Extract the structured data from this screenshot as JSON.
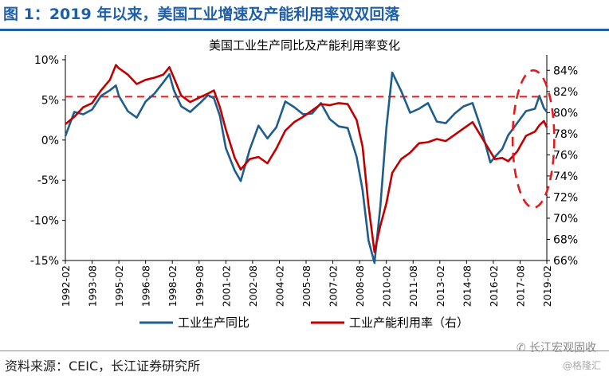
{
  "figure_title": "图 1：2019 年以来，美国工业增速及产能利用率双双回落",
  "source": "资料来源：CEIC，长江证券研究所",
  "watermark": "长江宏观固收",
  "watermark_sub": "@格隆汇",
  "colors": {
    "title": "#1f5fa8",
    "series_ip": "#1e5d8c",
    "series_cap": "#c00000",
    "reference": "#e31a1c"
  },
  "chart_data": {
    "type": "line",
    "title": "美国工业生产同比及产能利用率变化",
    "legend_position": "bottom",
    "grid": false,
    "x_range": [
      "1992-02",
      "2019-02"
    ],
    "x_tick_labels": [
      "1992-02",
      "1993-08",
      "1995-02",
      "1996-08",
      "1998-02",
      "1999-08",
      "2001-02",
      "2002-08",
      "2004-02",
      "2005-08",
      "2007-02",
      "2008-08",
      "2010-02",
      "2011-08",
      "2013-02",
      "2014-08",
      "2016-02",
      "2017-08",
      "2019-02"
    ],
    "left_axis": {
      "ylim": [
        -15,
        10
      ],
      "ticks": [
        "10%",
        "5%",
        "0%",
        "-5%",
        "-10%",
        "-15%"
      ],
      "tick_values": [
        10,
        5,
        0,
        -5,
        -10,
        -15
      ]
    },
    "right_axis": {
      "ylim": [
        66,
        85
      ],
      "ticks": [
        "84%",
        "82%",
        "80%",
        "78%",
        "76%",
        "74%",
        "72%",
        "70%",
        "68%",
        "66%"
      ],
      "tick_values": [
        84,
        82,
        80,
        78,
        76,
        74,
        72,
        70,
        68,
        66
      ]
    },
    "reference_line": {
      "axis": "right",
      "value": 81.5
    },
    "annotation": {
      "type": "dashed-ellipse",
      "x_start": "2017-03",
      "x_end": "2019-07",
      "y_right": [
        71,
        84
      ]
    },
    "series": [
      {
        "name": "工业生产同比",
        "axis": "left",
        "data": [
          [
            "1992-02",
            0.5
          ],
          [
            "1992-08",
            3.5
          ],
          [
            "1993-02",
            3.2
          ],
          [
            "1993-08",
            3.8
          ],
          [
            "1994-02",
            5.5
          ],
          [
            "1994-08",
            6.2
          ],
          [
            "1994-12",
            6.8
          ],
          [
            "1995-02",
            5.5
          ],
          [
            "1995-08",
            3.6
          ],
          [
            "1996-02",
            2.8
          ],
          [
            "1996-08",
            4.8
          ],
          [
            "1997-02",
            5.8
          ],
          [
            "1997-08",
            7.2
          ],
          [
            "1997-12",
            8.2
          ],
          [
            "1998-03",
            6.2
          ],
          [
            "1998-08",
            4.2
          ],
          [
            "1999-02",
            3.5
          ],
          [
            "1999-08",
            4.5
          ],
          [
            "2000-02",
            5.6
          ],
          [
            "2000-06",
            5.2
          ],
          [
            "2000-10",
            3.0
          ],
          [
            "2001-02",
            -1.0
          ],
          [
            "2001-08",
            -3.8
          ],
          [
            "2001-12",
            -5.1
          ],
          [
            "2002-06",
            -1.2
          ],
          [
            "2002-12",
            1.8
          ],
          [
            "2003-06",
            0.2
          ],
          [
            "2003-12",
            1.6
          ],
          [
            "2004-06",
            4.8
          ],
          [
            "2004-12",
            4.1
          ],
          [
            "2005-06",
            3.2
          ],
          [
            "2005-12",
            3.3
          ],
          [
            "2006-06",
            4.6
          ],
          [
            "2006-12",
            2.6
          ],
          [
            "2007-06",
            1.7
          ],
          [
            "2007-12",
            1.5
          ],
          [
            "2008-06",
            -2.1
          ],
          [
            "2008-10",
            -6.2
          ],
          [
            "2009-02",
            -12.5
          ],
          [
            "2009-06",
            -15.3
          ],
          [
            "2009-10",
            -8.2
          ],
          [
            "2010-02",
            1.5
          ],
          [
            "2010-06",
            8.4
          ],
          [
            "2010-12",
            6.1
          ],
          [
            "2011-06",
            3.4
          ],
          [
            "2011-12",
            3.9
          ],
          [
            "2012-06",
            4.6
          ],
          [
            "2012-12",
            2.3
          ],
          [
            "2013-06",
            2.1
          ],
          [
            "2013-12",
            3.3
          ],
          [
            "2014-06",
            4.2
          ],
          [
            "2014-12",
            4.6
          ],
          [
            "2015-06",
            1.3
          ],
          [
            "2015-12",
            -2.8
          ],
          [
            "2016-03",
            -2.1
          ],
          [
            "2016-08",
            -1.1
          ],
          [
            "2016-12",
            0.6
          ],
          [
            "2017-06",
            2.1
          ],
          [
            "2017-12",
            3.6
          ],
          [
            "2018-06",
            3.9
          ],
          [
            "2018-09",
            5.5
          ],
          [
            "2018-12",
            4.0
          ],
          [
            "2019-02",
            3.5
          ]
        ]
      },
      {
        "name": "工业产能利用率（右）",
        "axis": "right",
        "data": [
          [
            "1992-02",
            78.9
          ],
          [
            "1992-08",
            79.6
          ],
          [
            "1993-02",
            80.5
          ],
          [
            "1993-08",
            80.9
          ],
          [
            "1994-02",
            82.1
          ],
          [
            "1994-08",
            83.1
          ],
          [
            "1994-12",
            84.5
          ],
          [
            "1995-02",
            84.2
          ],
          [
            "1995-08",
            83.6
          ],
          [
            "1996-02",
            82.7
          ],
          [
            "1996-08",
            83.1
          ],
          [
            "1997-02",
            83.3
          ],
          [
            "1997-08",
            83.6
          ],
          [
            "1997-12",
            84.3
          ],
          [
            "1998-03",
            83.3
          ],
          [
            "1998-08",
            81.6
          ],
          [
            "1999-02",
            81.0
          ],
          [
            "1999-08",
            81.4
          ],
          [
            "2000-02",
            81.8
          ],
          [
            "2000-06",
            82.1
          ],
          [
            "2000-10",
            80.5
          ],
          [
            "2001-02",
            78.4
          ],
          [
            "2001-08",
            75.7
          ],
          [
            "2001-12",
            74.6
          ],
          [
            "2002-06",
            75.6
          ],
          [
            "2002-12",
            75.8
          ],
          [
            "2003-06",
            75.2
          ],
          [
            "2003-12",
            76.6
          ],
          [
            "2004-06",
            78.3
          ],
          [
            "2004-12",
            79.1
          ],
          [
            "2005-06",
            79.6
          ],
          [
            "2005-12",
            80.2
          ],
          [
            "2006-06",
            80.8
          ],
          [
            "2006-12",
            80.7
          ],
          [
            "2007-06",
            80.9
          ],
          [
            "2007-12",
            80.8
          ],
          [
            "2008-06",
            79.3
          ],
          [
            "2008-10",
            76.8
          ],
          [
            "2009-02",
            71.2
          ],
          [
            "2009-06",
            66.8
          ],
          [
            "2009-10",
            69.3
          ],
          [
            "2010-02",
            71.4
          ],
          [
            "2010-06",
            74.3
          ],
          [
            "2010-12",
            75.6
          ],
          [
            "2011-06",
            76.2
          ],
          [
            "2011-12",
            77.1
          ],
          [
            "2012-06",
            77.2
          ],
          [
            "2012-12",
            77.5
          ],
          [
            "2013-06",
            77.3
          ],
          [
            "2013-12",
            77.9
          ],
          [
            "2014-06",
            78.5
          ],
          [
            "2014-12",
            79.1
          ],
          [
            "2015-06",
            77.7
          ],
          [
            "2015-12",
            76.3
          ],
          [
            "2016-03",
            75.6
          ],
          [
            "2016-08",
            75.7
          ],
          [
            "2016-12",
            75.4
          ],
          [
            "2017-06",
            76.3
          ],
          [
            "2017-12",
            77.8
          ],
          [
            "2018-06",
            78.2
          ],
          [
            "2018-09",
            78.8
          ],
          [
            "2018-12",
            79.2
          ],
          [
            "2019-02",
            78.6
          ]
        ]
      }
    ]
  }
}
